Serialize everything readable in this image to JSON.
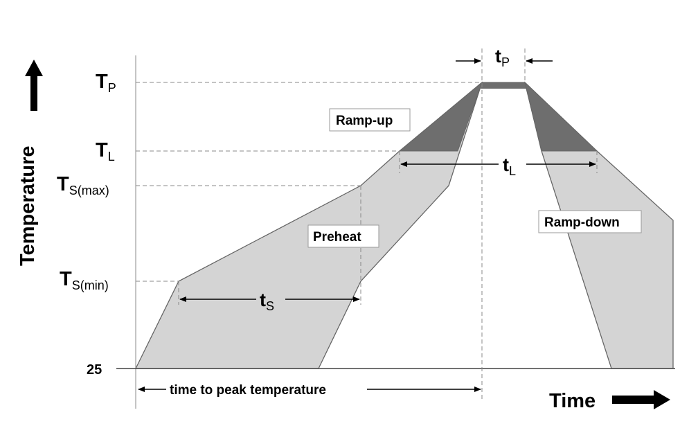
{
  "y_axis": {
    "title": "Temperature",
    "ticks": {
      "tp": {
        "main": "T",
        "sub": "P"
      },
      "tl": {
        "main": "T",
        "sub": "L"
      },
      "ts_max": {
        "main": "T",
        "sub": "S(max)"
      },
      "ts_min": {
        "main": "T",
        "sub": "S(min)"
      },
      "ambient": "25"
    }
  },
  "x_axis": {
    "title": "Time"
  },
  "regions": {
    "ramp_up": "Ramp-up",
    "preheat": "Preheat",
    "ramp_down": "Ramp-down"
  },
  "intervals": {
    "tp": {
      "main": "t",
      "sub": "P"
    },
    "tl": {
      "main": "t",
      "sub": "L"
    },
    "ts": {
      "main": "t",
      "sub": "S"
    },
    "time_to_peak": "time to peak temperature"
  },
  "colors": {
    "profile_fill": "#d4d4d4",
    "above_liquidus_fill": "#6e6e6e",
    "outline": "#666666",
    "guide_line": "#888888"
  }
}
